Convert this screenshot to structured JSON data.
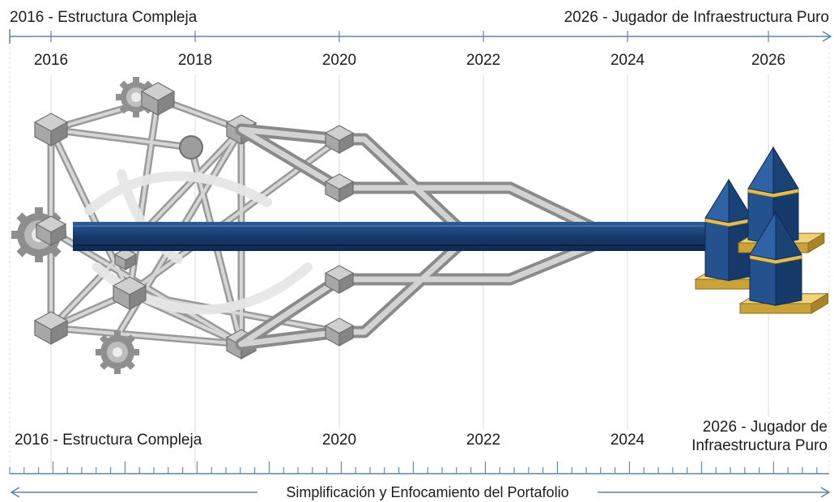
{
  "timeline": {
    "top_left_label": "2016 - Estructura Compleja",
    "top_right_label": "2026 - Jugador de Infraestructura Puro",
    "years": [
      "2016",
      "2018",
      "2020",
      "2022",
      "2024",
      "2026"
    ],
    "bottom_years": [
      "2020",
      "2022",
      "2024"
    ],
    "bottom_left_label": "2016 - Estructura Compleja",
    "bottom_right_label_line1": "2026 - Jugador de",
    "bottom_right_label_line2": "Infraestructura Puro",
    "footer_label": "Simplificación y Enfocamiento del Portafolio"
  },
  "colors": {
    "axis": "#5a86a8",
    "beam": "#173a6b",
    "beam_light": "#2a5a96",
    "pillar": "#1f4377",
    "pillar_gold": "#d9b24c",
    "gray_frame": "#a9a9a9",
    "gray_light": "#d8d8d8",
    "grid": "#dcdcdc"
  },
  "icons": [
    "gear-icon",
    "cube-node-icon",
    "pillar-icon"
  ]
}
